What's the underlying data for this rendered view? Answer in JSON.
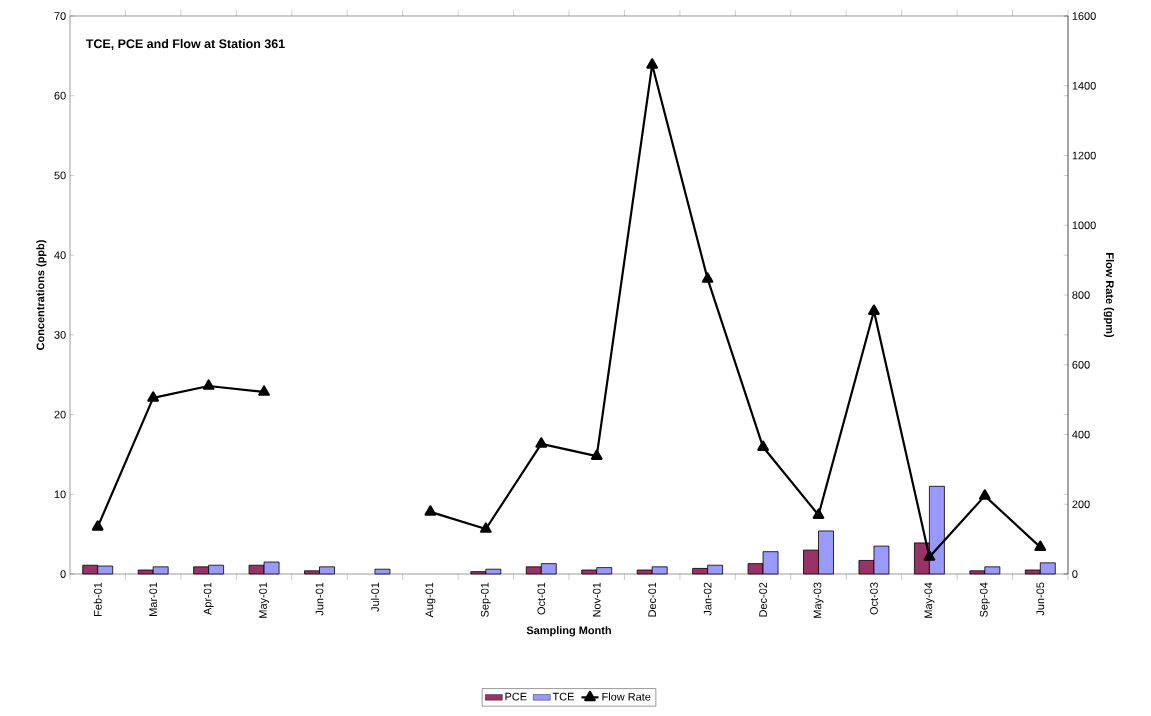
{
  "chart_data": {
    "type": "bar",
    "title": "TCE, PCE and Flow at Station 361",
    "xlabel": "Sampling Month",
    "ylabel": "Concentrations (ppb)",
    "y2label": "Flow Rate (gpm)",
    "categories": [
      "Feb-01",
      "Mar-01",
      "Apr-01",
      "May-01",
      "Jun-01",
      "Jul-01",
      "Aug-01",
      "Sep-01",
      "Oct-01",
      "Nov-01",
      "Dec-01",
      "Jan-02",
      "Dec-02",
      "May-03",
      "Oct-03",
      "May-04",
      "Sep-04",
      "Jun-05"
    ],
    "series": [
      {
        "name": "PCE",
        "color": "#993366",
        "values": [
          1.1,
          0.5,
          0.9,
          1.1,
          0.4,
          null,
          null,
          0.3,
          0.9,
          0.5,
          0.5,
          0.7,
          1.3,
          3.0,
          1.7,
          3.9,
          0.4,
          0.5
        ]
      },
      {
        "name": "TCE",
        "color": "#9999ff",
        "values": [
          1.0,
          0.9,
          1.1,
          1.5,
          0.9,
          0.6,
          null,
          0.6,
          1.3,
          0.8,
          0.9,
          1.1,
          2.8,
          5.4,
          3.5,
          11.0,
          0.9,
          1.4
        ]
      },
      {
        "name": "Flow Rate",
        "type": "line",
        "axis": "y2",
        "color": "#000000",
        "marker": "triangle",
        "line_style": "solid",
        "values": [
          135,
          505,
          539,
          522,
          null,
          null,
          178,
          129,
          373,
          338,
          1460,
          846,
          364,
          169,
          754,
          49,
          224,
          77
        ]
      }
    ],
    "ylim": [
      0,
      70
    ],
    "yticks": [
      0,
      10,
      20,
      30,
      40,
      50,
      60,
      70
    ],
    "y2lim": [
      0,
      1600
    ],
    "y2ticks": [
      0,
      200,
      400,
      600,
      800,
      1000,
      1200,
      1400,
      1600
    ],
    "legend": "bottom"
  }
}
